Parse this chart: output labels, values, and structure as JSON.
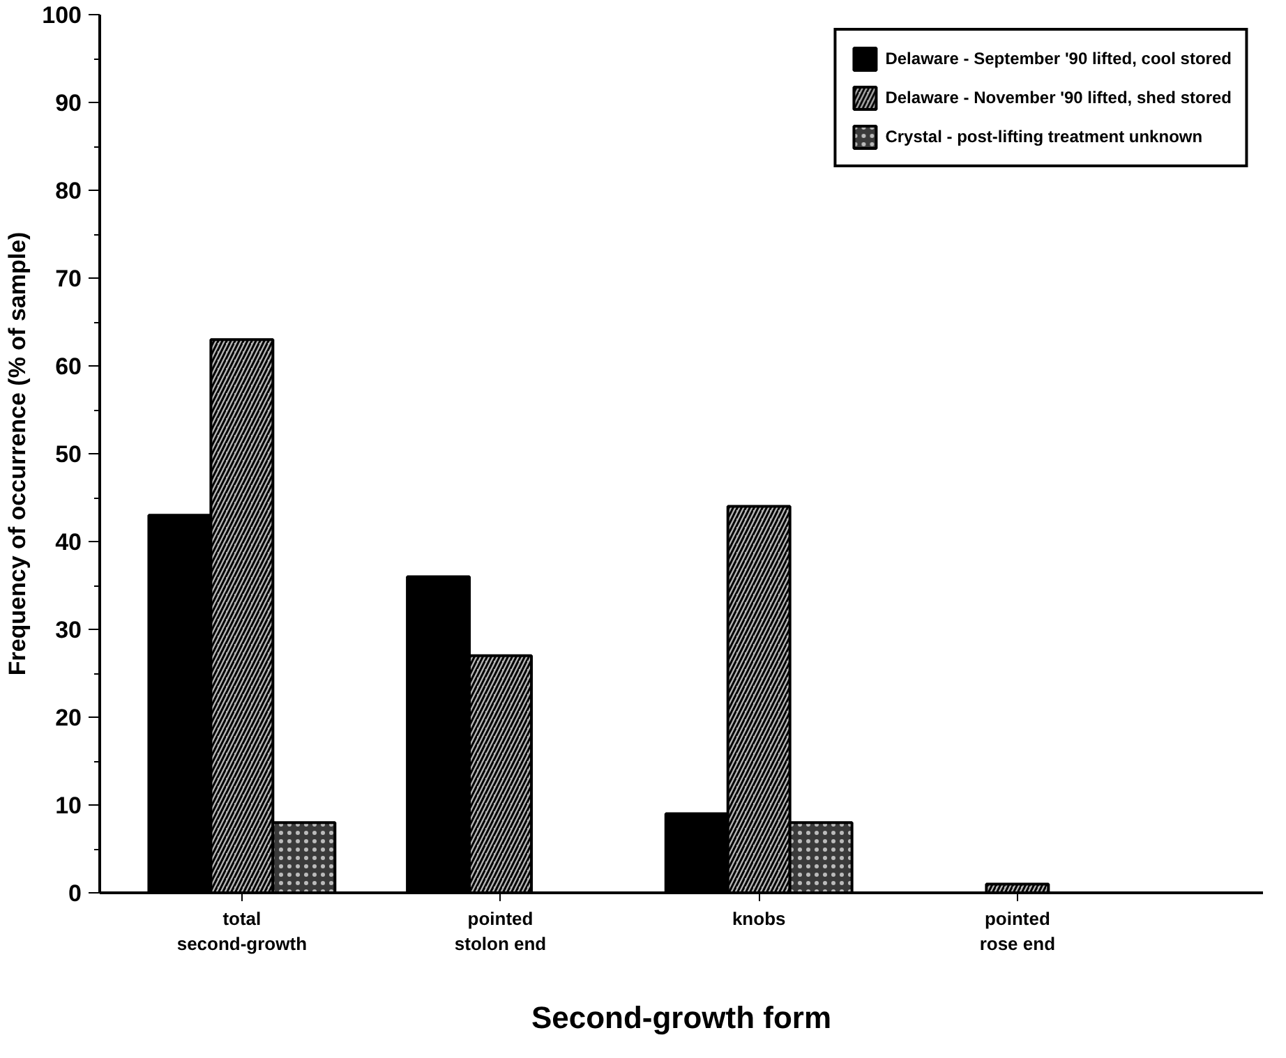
{
  "chart_data": {
    "type": "bar",
    "xlabel": "Second-growth form",
    "ylabel": "Frequency of occurrence (% of sample)",
    "categories": [
      "total\nsecond-growth",
      "pointed\nstolon end",
      "knobs",
      "pointed\nrose end"
    ],
    "series": [
      {
        "name": "Delaware - September '90 lifted, cool stored",
        "color": "#000000",
        "values": [
          43,
          36,
          9,
          0
        ]
      },
      {
        "name": "Delaware - November '90 lifted, shed stored",
        "color": "#b4b4b4",
        "values": [
          63,
          27,
          44,
          1
        ]
      },
      {
        "name": "Crystal - post-lifting treatment unknown",
        "color": "#3a3a3a",
        "values": [
          8,
          0,
          8,
          0
        ]
      }
    ],
    "ylim": [
      0,
      100
    ],
    "yticks": [
      0,
      10,
      20,
      30,
      40,
      50,
      60,
      70,
      80,
      90,
      100
    ],
    "grid": false,
    "legend": "top right"
  }
}
